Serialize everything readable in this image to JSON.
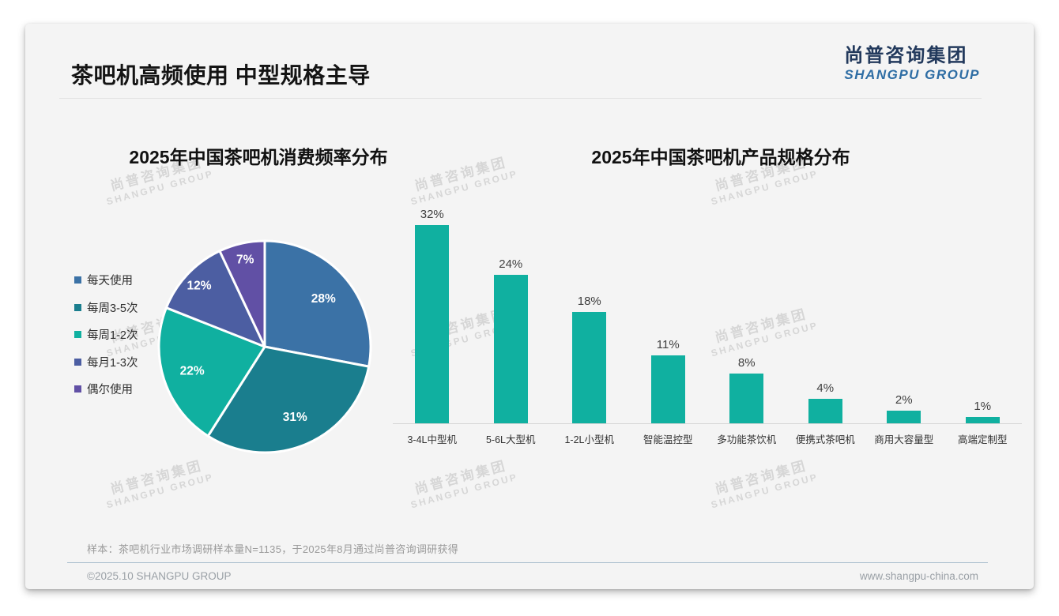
{
  "page": {
    "title": "茶吧机高频使用 中型规格主导",
    "logo": {
      "cn": "尚普咨询集团",
      "en": "SHANGPU GROUP"
    },
    "watermark": {
      "cn": "尚普咨询集团",
      "en": "SHANGPU GROUP"
    },
    "footnote": "样本：茶吧机行业市场调研样本量N=1135，于2025年8月通过尚普咨询调研获得",
    "copyright": "©2025.10 SHANGPU GROUP",
    "website": "www.shangpu-china.com"
  },
  "colors": {
    "card_background": "#f4f4f4",
    "logo_cn": "#22395c",
    "logo_en": "#2e6da4",
    "bar_teal": "#10b0a0",
    "footer_divider": "#a7bccd"
  },
  "chart_data": [
    {
      "type": "pie",
      "title": "2025年中国茶吧机消费频率分布",
      "labels": [
        "每天使用",
        "每周3-5次",
        "每周1-2次",
        "每月1-3次",
        "偶尔使用"
      ],
      "values": [
        28,
        31,
        22,
        12,
        7
      ],
      "data_labels": [
        "28%",
        "31%",
        "22%",
        "12%",
        "7%"
      ],
      "colors": [
        "#3b72a6",
        "#1a7e8e",
        "#10b0a0",
        "#4c5ea2",
        "#6150a5"
      ],
      "start_angle_deg": 0,
      "direction": "clockwise",
      "legend_position": "left",
      "slice_border_color": "#ffffff"
    },
    {
      "type": "bar",
      "title": "2025年中国茶吧机产品规格分布",
      "categories": [
        "3-4L中型机",
        "5-6L大型机",
        "1-2L小型机",
        "智能温控型",
        "多功能茶饮机",
        "便携式茶吧机",
        "商用大容量型",
        "高端定制型"
      ],
      "values": [
        32,
        24,
        18,
        11,
        8,
        4,
        2,
        1
      ],
      "data_labels": [
        "32%",
        "24%",
        "18%",
        "11%",
        "8%",
        "4%",
        "2%",
        "1%"
      ],
      "bar_color": "#10b0a0",
      "ylim": [
        0,
        34
      ],
      "grid": false,
      "value_labels_position": "above"
    }
  ]
}
